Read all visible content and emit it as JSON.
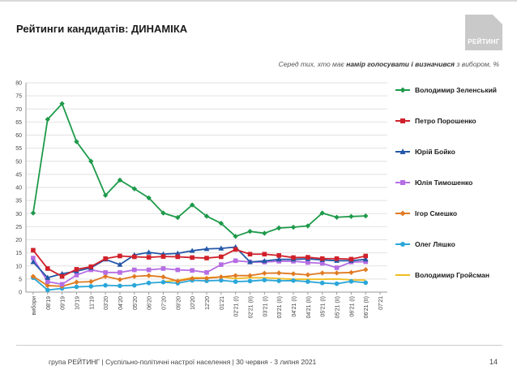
{
  "header": {
    "title": "Рейтинги кандидатів: ДИНАМІКА",
    "logo_text": "РЕЙТИНГ"
  },
  "subtitle": {
    "part1": "Серед тих, хто має ",
    "bold": "намір голосувати і визначився",
    "part2": " з вибором, %"
  },
  "footer": {
    "text": "група РЕЙТИНГ | Суспільно-політичні настрої населення  | 30 червня - 3 липня 2021",
    "page": "14"
  },
  "chart_data": {
    "type": "line",
    "ylim": [
      0,
      80
    ],
    "yticks": [
      0,
      5,
      10,
      15,
      20,
      25,
      30,
      35,
      40,
      45,
      50,
      55,
      60,
      65,
      70,
      75,
      80
    ],
    "grid": true,
    "legend_position": "right",
    "categories": [
      "вибори",
      "08'19",
      "09'19",
      "10'19",
      "11'19",
      "03'20",
      "04'20",
      "05'20",
      "06'20",
      "07'20",
      "09'20",
      "10'20",
      "12'20",
      "01'21",
      "02'21 (I)",
      "02'21 (II)",
      "03'21 (I)",
      "03'21 (II)",
      "04'21 (I)",
      "04'21 (II)",
      "05'21 (I)",
      "05'21 (II)",
      "06'21 (I)",
      "06'21 (II)",
      "07'21"
    ],
    "series": [
      {
        "name": "Володимир Зеленський",
        "color": "#1e9a4a",
        "marker": "diamond",
        "values": [
          30.2,
          66,
          72,
          57.5,
          50,
          37,
          42.8,
          39.5,
          36,
          30.2,
          28.5,
          33.3,
          29,
          26.3,
          21.3,
          23.2,
          22.5,
          24.5,
          24.8,
          25.3,
          30.2,
          28.6,
          28.9,
          29.1,
          null
        ]
      },
      {
        "name": "Петро Порошенко",
        "color": "#d0202a",
        "marker": "square",
        "values": [
          16,
          9,
          6,
          8.7,
          9.7,
          12.8,
          13.8,
          13.5,
          13.3,
          13.6,
          13.5,
          13.2,
          13,
          13.5,
          16.3,
          14.5,
          14.5,
          14,
          13.2,
          13.3,
          12.8,
          12.8,
          12.6,
          13.8,
          null
        ]
      },
      {
        "name": "Юрій Бойко",
        "color": "#2457a7",
        "marker": "triangle",
        "values": [
          11.5,
          5.5,
          7,
          8,
          9.3,
          12.5,
          10.5,
          14.2,
          15.2,
          14.5,
          14.8,
          15.8,
          16.5,
          16.7,
          17.2,
          11.5,
          11.9,
          12.5,
          12.5,
          12.7,
          12.3,
          12,
          12,
          12.5,
          null
        ]
      },
      {
        "name": "Юлія Тимошенко",
        "color": "#b66de3",
        "marker": "square",
        "values": [
          13,
          4,
          3,
          6.5,
          8.5,
          7.5,
          7.5,
          8.5,
          8.5,
          9,
          8.5,
          8.3,
          7.5,
          10.5,
          12,
          11.5,
          11.5,
          11.8,
          11.8,
          11.3,
          11,
          9.3,
          11.5,
          11.6,
          null
        ]
      },
      {
        "name": "Ігор Смешко",
        "color": "#e07a22",
        "marker": "diamond",
        "values": [
          6,
          2.5,
          2.2,
          3.8,
          4,
          6,
          4.8,
          6,
          6.3,
          5.8,
          4.2,
          5.2,
          5.3,
          5.8,
          6.3,
          6.3,
          7.2,
          7.3,
          7,
          6.6,
          7.3,
          7.3,
          7.5,
          8.6,
          null
        ]
      },
      {
        "name": "Олег Ляшко",
        "color": "#2aa6d8",
        "marker": "circle",
        "values": [
          5.5,
          0.8,
          1.4,
          2,
          2.2,
          2.6,
          2.4,
          2.6,
          3.5,
          3.8,
          3.4,
          4.5,
          4.3,
          4.5,
          4,
          4.2,
          4.6,
          4.3,
          4.4,
          4,
          3.5,
          3.2,
          4.1,
          3.6,
          null
        ]
      },
      {
        "name": "Володимир Гройсман",
        "color": "#f2bd1d",
        "marker": "none",
        "values": [
          null,
          null,
          null,
          null,
          null,
          null,
          null,
          null,
          null,
          4,
          4.5,
          5.5,
          5.5,
          5.8,
          5.2,
          5.5,
          5.5,
          5.2,
          4.9,
          4.9,
          4.9,
          5,
          4.7,
          4.6,
          null
        ]
      }
    ]
  }
}
